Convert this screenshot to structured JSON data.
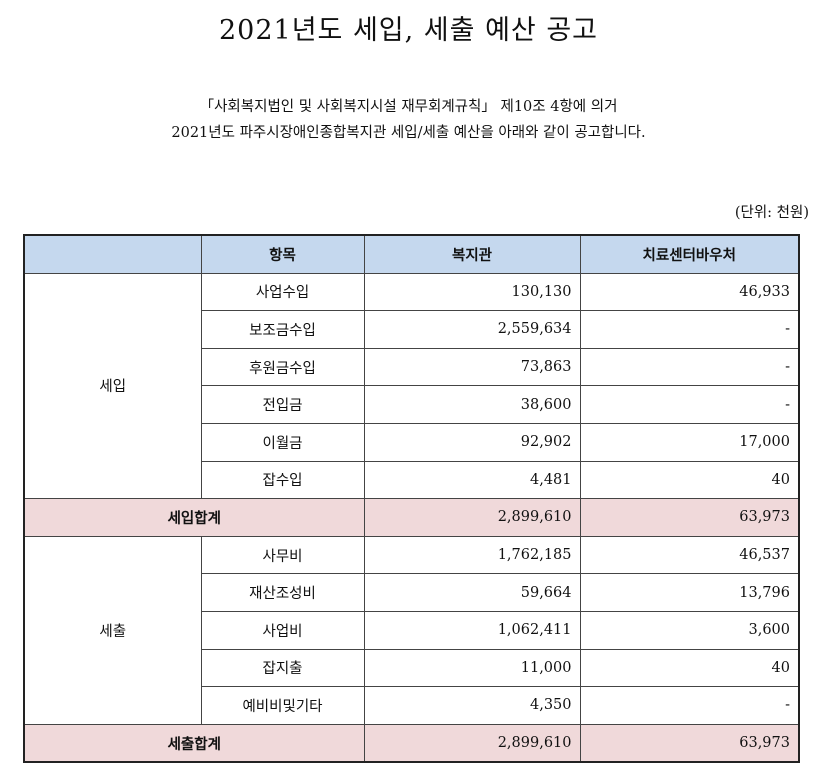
{
  "title": "2021년도 세입, 세출 예산 공고",
  "intro": {
    "line1": "「사회복지법인 및 사회복지시설 재무회계규칙」 제10조 4항에 의거",
    "line2": "2021년도 파주시장애인종합복지관 세입/세출 예산을 아래와 같이 공고합니다."
  },
  "unit_note": "(단위: 천원)",
  "table": {
    "headers": [
      "",
      "항목",
      "복지관",
      "치료센터바우처"
    ],
    "revenue": {
      "group_label": "세입",
      "rows": [
        {
          "item": "사업수입",
          "welfare": "130,130",
          "voucher": "46,933"
        },
        {
          "item": "보조금수입",
          "welfare": "2,559,634",
          "voucher": "-"
        },
        {
          "item": "후원금수입",
          "welfare": "73,863",
          "voucher": "-"
        },
        {
          "item": "전입금",
          "welfare": "38,600",
          "voucher": "-"
        },
        {
          "item": "이월금",
          "welfare": "92,902",
          "voucher": "17,000"
        },
        {
          "item": "잡수입",
          "welfare": "4,481",
          "voucher": "40"
        }
      ],
      "total": {
        "label": "세입합계",
        "welfare": "2,899,610",
        "voucher": "63,973"
      }
    },
    "expenditure": {
      "group_label": "세출",
      "rows": [
        {
          "item": "사무비",
          "welfare": "1,762,185",
          "voucher": "46,537"
        },
        {
          "item": "재산조성비",
          "welfare": "59,664",
          "voucher": "13,796"
        },
        {
          "item": "사업비",
          "welfare": "1,062,411",
          "voucher": "3,600"
        },
        {
          "item": "잡지출",
          "welfare": "11,000",
          "voucher": "40"
        },
        {
          "item": "예비비및기타",
          "welfare": "4,350",
          "voucher": "-"
        }
      ],
      "total": {
        "label": "세출합계",
        "welfare": "2,899,610",
        "voucher": "63,973"
      }
    }
  },
  "colors": {
    "header_bg": "#c5d8ee",
    "total_row_bg": "#f0d9da"
  }
}
